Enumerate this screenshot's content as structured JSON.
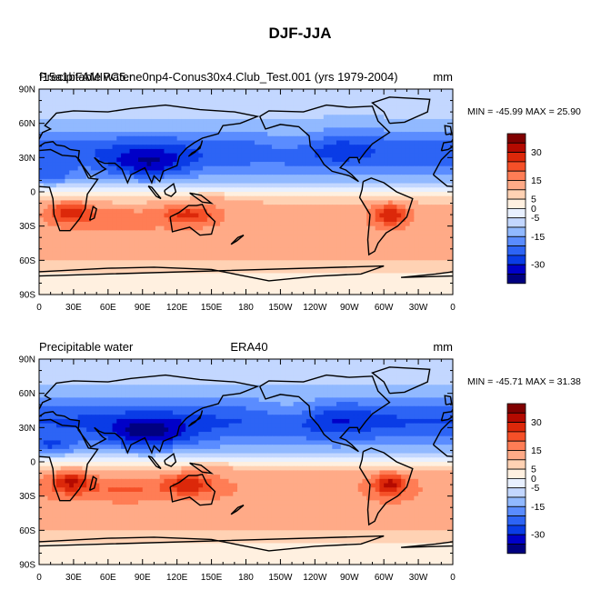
{
  "figure": {
    "title": "DJF-JJA"
  },
  "colors": {
    "levels": [
      "#000080",
      "#0000c8",
      "#0a3ce6",
      "#2d64f5",
      "#5a8cff",
      "#91b9ff",
      "#c3d7ff",
      "#e8f0ff",
      "#fff0e0",
      "#ffd2b4",
      "#ffaa87",
      "#ff7d55",
      "#f55028",
      "#dc280a",
      "#b40a00",
      "#800000"
    ],
    "land": "none"
  },
  "chart_data": [
    {
      "type": "heatmap",
      "title": "Precipitable water",
      "subtitle": "f15a1bFAMIPC5.ne0np4-Conus30x4.Club_Test.001 (yrs 1979-2004)",
      "units": "mm",
      "stats": "MIN = -45.99 MAX =  25.90",
      "x_ticks": [
        "0",
        "30E",
        "60E",
        "90E",
        "120E",
        "150E",
        "180",
        "150W",
        "120W",
        "90W",
        "60W",
        "30W",
        "0"
      ],
      "y_ticks": [
        "90N",
        "60N",
        "30N",
        "0",
        "30S",
        "60S",
        "90S"
      ],
      "colorbar_labels": [
        "30",
        "15",
        "5",
        "0",
        "-5",
        "-15",
        "-30"
      ],
      "colorbar_levels": [
        -35,
        -30,
        -25,
        -20,
        -15,
        -10,
        -5,
        0,
        5,
        10,
        15,
        20,
        25,
        30,
        35
      ],
      "description": "DJF minus JJA difference map"
    },
    {
      "type": "heatmap",
      "title": "Precipitable water",
      "subtitle": "ERA40",
      "units": "mm",
      "stats": "MIN = -45.71 MAX =  31.38",
      "x_ticks": [
        "0",
        "30E",
        "60E",
        "90E",
        "120E",
        "150E",
        "180",
        "150W",
        "120W",
        "90W",
        "60W",
        "30W",
        "0"
      ],
      "y_ticks": [
        "90N",
        "60N",
        "30N",
        "0",
        "30S",
        "60S",
        "90S"
      ],
      "colorbar_labels": [
        "30",
        "15",
        "5",
        "0",
        "-5",
        "-15",
        "-30"
      ],
      "colorbar_levels": [
        -35,
        -30,
        -25,
        -20,
        -15,
        -10,
        -5,
        0,
        5,
        10,
        15,
        20,
        25,
        30,
        35
      ],
      "description": "DJF minus JJA difference map"
    }
  ]
}
